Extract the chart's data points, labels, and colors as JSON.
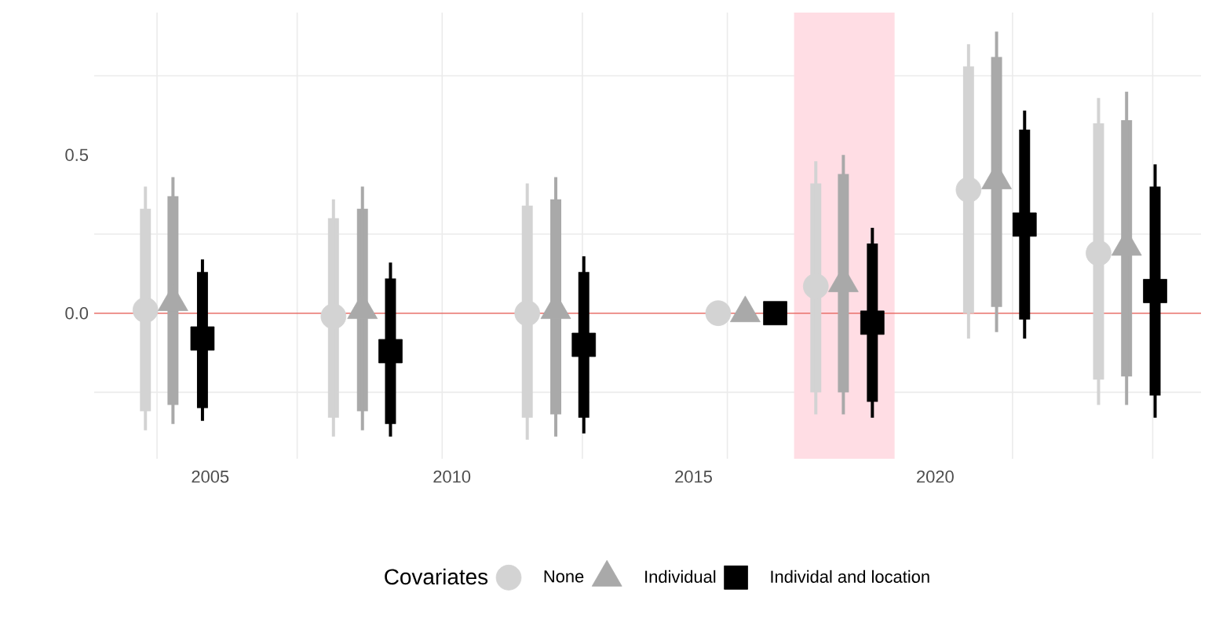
{
  "chart_data": {
    "type": "scatter",
    "legend_title": "Covariates",
    "legend": "bottom",
    "grid": true,
    "xlim": [
      2002.6,
      2025.5
    ],
    "ylim": [
      -0.46,
      0.95
    ],
    "xticks": [
      {
        "value": 2003.9,
        "label": null
      },
      {
        "value": 2006.8,
        "label": null
      },
      {
        "value": 2009.8,
        "label": null
      },
      {
        "value": 2012.7,
        "label": null
      },
      {
        "value": 2015.7,
        "label": null
      },
      {
        "value": 2018.6,
        "label": null
      },
      {
        "value": 2021.6,
        "label": null
      },
      {
        "value": 2024.5,
        "label": null
      },
      2005,
      2010,
      2015,
      2020
    ],
    "yticks": [
      {
        "value": -0.25,
        "label": null
      },
      {
        "value": 0.25,
        "label": null
      },
      {
        "value": 0.75,
        "label": null
      },
      {
        "value": 0,
        "label": "0.0"
      },
      {
        "value": 0.5,
        "label": "0.5"
      }
    ],
    "ref_lines": [
      {
        "axis": "y",
        "value": 0,
        "color": "#e8706a"
      }
    ],
    "bands": [
      {
        "axis": "x",
        "from": 2017.08,
        "to": 2019.16,
        "color": "#ffdde4"
      }
    ],
    "series": [
      {
        "type": "bar",
        "color": "#d3d3d3",
        "x": [
          2003.66,
          2007.55,
          2011.56,
          2015.51,
          2017.53,
          2020.69,
          2023.38
        ],
        "base": [
          -0.31,
          -0.33,
          -0.33,
          null,
          -0.25,
          0.0,
          -0.21
        ],
        "values": [
          0.64,
          0.63,
          0.67,
          null,
          0.66,
          0.78,
          0.81
        ]
      },
      {
        "type": "bar",
        "color": "#a9a9a9",
        "x": [
          2004.23,
          2008.15,
          2012.15,
          2016.07,
          2018.1,
          2021.27,
          2023.96
        ],
        "base": [
          -0.29,
          -0.31,
          -0.32,
          null,
          -0.25,
          0.02,
          -0.2
        ],
        "values": [
          0.66,
          0.64,
          0.68,
          null,
          0.69,
          0.79,
          0.81
        ]
      },
      {
        "type": "bar",
        "color": "#000000",
        "x": [
          2004.84,
          2008.73,
          2012.73,
          2016.69,
          2018.7,
          2021.85,
          2024.55
        ],
        "base": [
          -0.3,
          -0.35,
          -0.33,
          null,
          -0.28,
          -0.02,
          -0.26
        ],
        "values": [
          0.43,
          0.46,
          0.46,
          null,
          0.5,
          0.6,
          0.66
        ]
      },
      {
        "name": "None",
        "color": "#d3d3d3",
        "marker": "circle",
        "x": [
          2003.66,
          2007.55,
          2011.56,
          2015.51,
          2017.53,
          2020.69,
          2023.38
        ],
        "values": [
          0.01,
          -0.01,
          0.0,
          0,
          0.085,
          0.39,
          0.19
        ],
        "errors": [
          [
            -0.37,
            0.4
          ],
          [
            -0.39,
            0.36
          ],
          [
            -0.4,
            0.41
          ],
          null,
          [
            -0.32,
            0.48
          ],
          [
            -0.08,
            0.85
          ],
          [
            -0.29,
            0.68
          ]
        ]
      },
      {
        "name": "Individual",
        "color": "#a9a9a9",
        "marker": "triangle",
        "x": [
          2004.23,
          2008.15,
          2012.15,
          2016.07,
          2018.1,
          2021.27,
          2023.96
        ],
        "values": [
          0.035,
          0.01,
          0.01,
          0,
          0.095,
          0.42,
          0.21
        ],
        "errors": [
          [
            -0.35,
            0.43
          ],
          [
            -0.37,
            0.4
          ],
          [
            -0.39,
            0.43
          ],
          null,
          [
            -0.32,
            0.5
          ],
          [
            -0.06,
            0.89
          ],
          [
            -0.29,
            0.7
          ]
        ]
      },
      {
        "name": "Individal and location",
        "color": "#000000",
        "marker": "square",
        "x": [
          2004.84,
          2008.73,
          2012.73,
          2016.69,
          2018.7,
          2021.85,
          2024.55
        ],
        "values": [
          -0.08,
          -0.12,
          -0.1,
          0,
          -0.03,
          0.28,
          0.07
        ],
        "errors": [
          [
            -0.34,
            0.17
          ],
          [
            -0.39,
            0.16
          ],
          [
            -0.38,
            0.18
          ],
          null,
          [
            -0.33,
            0.27
          ],
          [
            -0.08,
            0.64
          ],
          [
            -0.33,
            0.47
          ]
        ]
      }
    ]
  }
}
